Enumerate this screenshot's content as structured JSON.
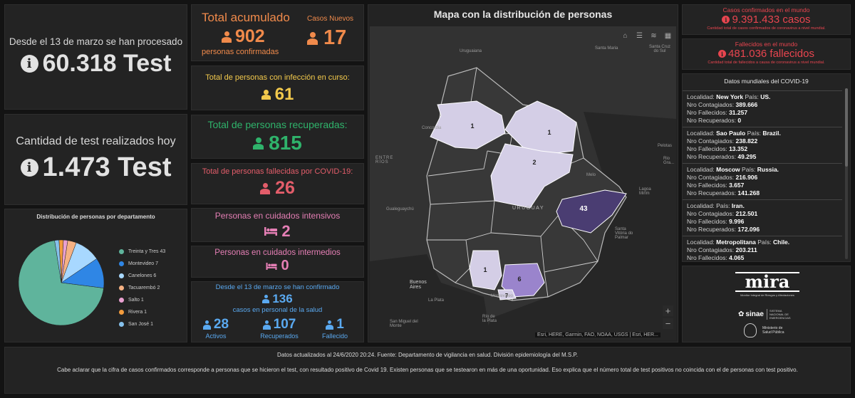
{
  "left": {
    "processed_label": "Desde el 13 de marzo se han procesado",
    "processed_value": "60.318 Test",
    "today_label": "Cantidad de test realizados hoy",
    "today_value": "1.473 Test"
  },
  "pie": {
    "title": "Distribución de personas por departamento",
    "slices": [
      {
        "label": "Treinta y Tres 43",
        "value": 43,
        "color": "#5fb49c"
      },
      {
        "label": "Montevideo 7",
        "value": 7,
        "color": "#2f86e5"
      },
      {
        "label": "Canelones 6",
        "value": 6,
        "color": "#a8d8ff"
      },
      {
        "label": "Tacuarembó 2",
        "value": 2,
        "color": "#f5b183"
      },
      {
        "label": "Salto 1",
        "value": 1,
        "color": "#e9a0d0"
      },
      {
        "label": "Rivera 1",
        "value": 1,
        "color": "#f39c3d"
      },
      {
        "label": "San José 1",
        "value": 1,
        "color": "#86c1ec"
      }
    ]
  },
  "stats": {
    "total_label": "Total acumulado",
    "total_value": "902",
    "total_sub": "personas confirmadas",
    "new_label": "Casos Nuevos",
    "new_value": "17",
    "active_label": "Total de personas con infección en curso:",
    "active_value": "61",
    "recovered_label": "Total de personas recuperadas:",
    "recovered_value": "815",
    "deaths_label": "Total de personas fallecidas por COVID-19:",
    "deaths_value": "26",
    "icu_label": "Personas en cuidados intensivos",
    "icu_value": "2",
    "intermediate_label": "Personas en cuidados intermedios",
    "intermediate_value": "0",
    "health_top": "Desde el 13 de marzo se han confirmado",
    "health_value": "136",
    "health_sub": "casos en personal de la salud",
    "health_active_value": "28",
    "health_active_label": "Activos",
    "health_recovered_value": "107",
    "health_recovered_label": "Recuperados",
    "health_deceased_value": "1",
    "health_deceased_label": "Fallecido"
  },
  "map": {
    "title": "Mapa con la distribución de personas",
    "attribution": "Esri, HERE, Garmin, FAO, NOAA, USGS | Esri, HER...",
    "zoom_in": "+",
    "zoom_out": "−",
    "places": {
      "uruguaiana": "Uruguaiana",
      "santa_maria": "Santa Maria",
      "santa_cruz": "Santa Cruz do Sul",
      "concordia": "Concordia",
      "pelotas": "Pelotas",
      "rio_grande": "Rio Gra...",
      "entre_rios": "ENTRE RÍOS",
      "melo": "Melo",
      "gualeguaychu": "Gualeguaychú",
      "uruguay": "URUGUAY",
      "laguna_dos_patos": "Lagoa Mirim",
      "santa_vitoria": "Santa Vitória do Palmar",
      "buenos_aires": "Buenos Aires",
      "la_plata": "La Plata",
      "montevideo": "Montevideo",
      "rio_plata": "Río de la Plata",
      "san_miguel": "San Miguel del Monte"
    },
    "regions": [
      {
        "name": "Salto",
        "count": "1"
      },
      {
        "name": "Rivera",
        "count": "1"
      },
      {
        "name": "Tacuarembó",
        "count": "2"
      },
      {
        "name": "Treinta y Tres",
        "count": "43"
      },
      {
        "name": "San José",
        "count": "1"
      },
      {
        "name": "Canelones",
        "count": "6"
      },
      {
        "name": "Montevideo",
        "count": "7"
      }
    ]
  },
  "world": {
    "confirmed_label": "Casos confirmados en el mundo",
    "confirmed_value": "9.391.433 casos",
    "confirmed_sub": "Cantidad total de casos confirmados de coronavirus a nivel mundial.",
    "deaths_label": "Fallecidos en el mundo",
    "deaths_value": "481.036 fallecidos",
    "deaths_sub": "Cantidad total de fallecidos a causa de coronavirus a nivel mundial.",
    "list_title": "Datos mundiales del COVID-19",
    "records": [
      {
        "localidad": "New York",
        "pais": "US.",
        "contagiados": "389.666",
        "fallecidos": "31.257",
        "recuperados": "0"
      },
      {
        "localidad": "Sao Paulo",
        "pais": "Brazil.",
        "contagiados": "238.822",
        "fallecidos": "13.352",
        "recuperados": "49.295"
      },
      {
        "localidad": "Moscow",
        "pais": "Russia.",
        "contagiados": "216.906",
        "fallecidos": "3.657",
        "recuperados": "141.268"
      },
      {
        "localidad": "",
        "pais": "Iran.",
        "contagiados": "212.501",
        "fallecidos": "9.996",
        "recuperados": "172.096"
      },
      {
        "localidad": "Metropolitana",
        "pais": "Chile.",
        "contagiados": "203.211",
        "fallecidos": "4.065",
        "recuperados": "0"
      }
    ],
    "labels": {
      "localidad": "Localidad:",
      "pais": "País:",
      "contagiados": "Nro Contagiados:",
      "fallecidos": "Nro Fallecidos:",
      "recuperados": "Nro Recuperados:"
    }
  },
  "logos": {
    "mira": "mira",
    "mira_sub": "Monitor Integral de Riesgos y Afectaciones",
    "sinae": "sinae",
    "sinae_sub": "SISTEMA NACIONAL DE EMERGENCIAS",
    "msp": "Ministerio de Salud Pública"
  },
  "footer": {
    "updated": "Datos actualizados al 24/6/2020 20:24. Fuente: Departamento de vigilancia en salud. División epidemiología del M.S.P.",
    "note": "Cabe aclarar que la cifra de casos confirmados corresponde a personas que se hicieron el test, con resultado positivo de Covid 19. Existen personas que se testearon en más de una oportunidad. Eso explica que el número total de test positivos no coincida con el de personas con test positivo."
  },
  "colors": {
    "orange": "#f08a4b",
    "yellow": "#f2c94c",
    "green": "#2fb36b",
    "red": "#e35d6a",
    "pink": "#e57fb5",
    "blue": "#5aa9f0",
    "world_red": "#e8454f"
  }
}
